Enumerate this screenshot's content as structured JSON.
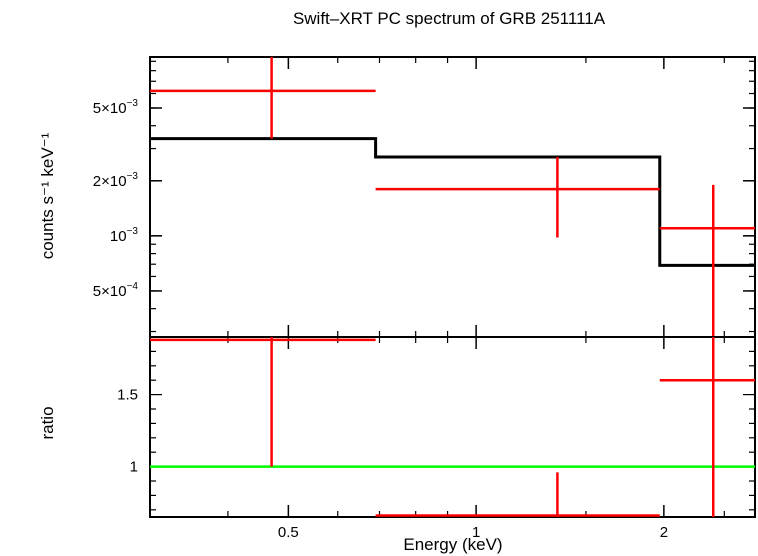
{
  "chart_data": [
    {
      "type": "line",
      "title": "Swift–XRT PC spectrum of GRB 251111A",
      "xlabel": "Energy (keV)",
      "ylabel": "counts s⁻¹ keV⁻¹",
      "xscale": "log",
      "yscale": "log",
      "xlim": [
        0.3,
        2.8
      ],
      "ylim": [
        0.00028,
        0.0095
      ],
      "x_ticks": [
        {
          "value": 0.5,
          "label": "0.5"
        },
        {
          "value": 1,
          "label": "1"
        },
        {
          "value": 2,
          "label": "2"
        }
      ],
      "y_ticks": [
        {
          "value": 0.0005,
          "mantissa": "5×10",
          "exp": "−4"
        },
        {
          "value": 0.001,
          "mantissa": "10",
          "exp": "−3"
        },
        {
          "value": 0.002,
          "mantissa": "2×10",
          "exp": "−3"
        },
        {
          "value": 0.005,
          "mantissa": "5×10",
          "exp": "−3"
        }
      ],
      "data_points": [
        {
          "x_lo": 0.3,
          "x": 0.47,
          "x_hi": 0.69,
          "y": 0.0062,
          "y_lo": 0.0034,
          "y_hi": 0.0095
        },
        {
          "x_lo": 0.69,
          "x": 1.35,
          "x_hi": 1.97,
          "y": 0.0018,
          "y_lo": 0.00098,
          "y_hi": 0.0027
        },
        {
          "x_lo": 1.97,
          "x": 2.4,
          "x_hi": 2.8,
          "y": 0.0011,
          "y_lo": 0.00028,
          "y_hi": 0.0019
        }
      ],
      "model": [
        {
          "x_lo": 0.3,
          "x_hi": 0.69,
          "y": 0.0034
        },
        {
          "x_lo": 0.69,
          "x_hi": 1.97,
          "y": 0.0027
        },
        {
          "x_lo": 1.97,
          "x_hi": 2.8,
          "y": 0.00069
        }
      ],
      "colors": {
        "data": "#ff0000",
        "model": "#000000",
        "axes": "#000000"
      }
    },
    {
      "type": "line",
      "xlabel": "Energy (keV)",
      "ylabel": "ratio",
      "xscale": "log",
      "xlim": [
        0.3,
        2.8
      ],
      "ylim": [
        0.65,
        1.9
      ],
      "y_ticks": [
        {
          "value": 1,
          "label": "1"
        },
        {
          "value": 1.5,
          "label": "1.5"
        }
      ],
      "data_points": [
        {
          "x_lo": 0.3,
          "x": 0.47,
          "x_hi": 0.69,
          "y": 1.88,
          "y_lo": 1.0,
          "y_hi": 1.9
        },
        {
          "x_lo": 0.69,
          "x": 1.35,
          "x_hi": 1.97,
          "y": 0.66,
          "y_lo": 0.65,
          "y_hi": 0.96
        },
        {
          "x_lo": 1.97,
          "x": 2.4,
          "x_hi": 2.8,
          "y": 1.6,
          "y_lo": 0.65,
          "y_hi": 1.9
        }
      ],
      "reference_line": {
        "y": 1,
        "color": "#00ff00"
      },
      "colors": {
        "data": "#ff0000",
        "axes": "#000000"
      }
    }
  ]
}
